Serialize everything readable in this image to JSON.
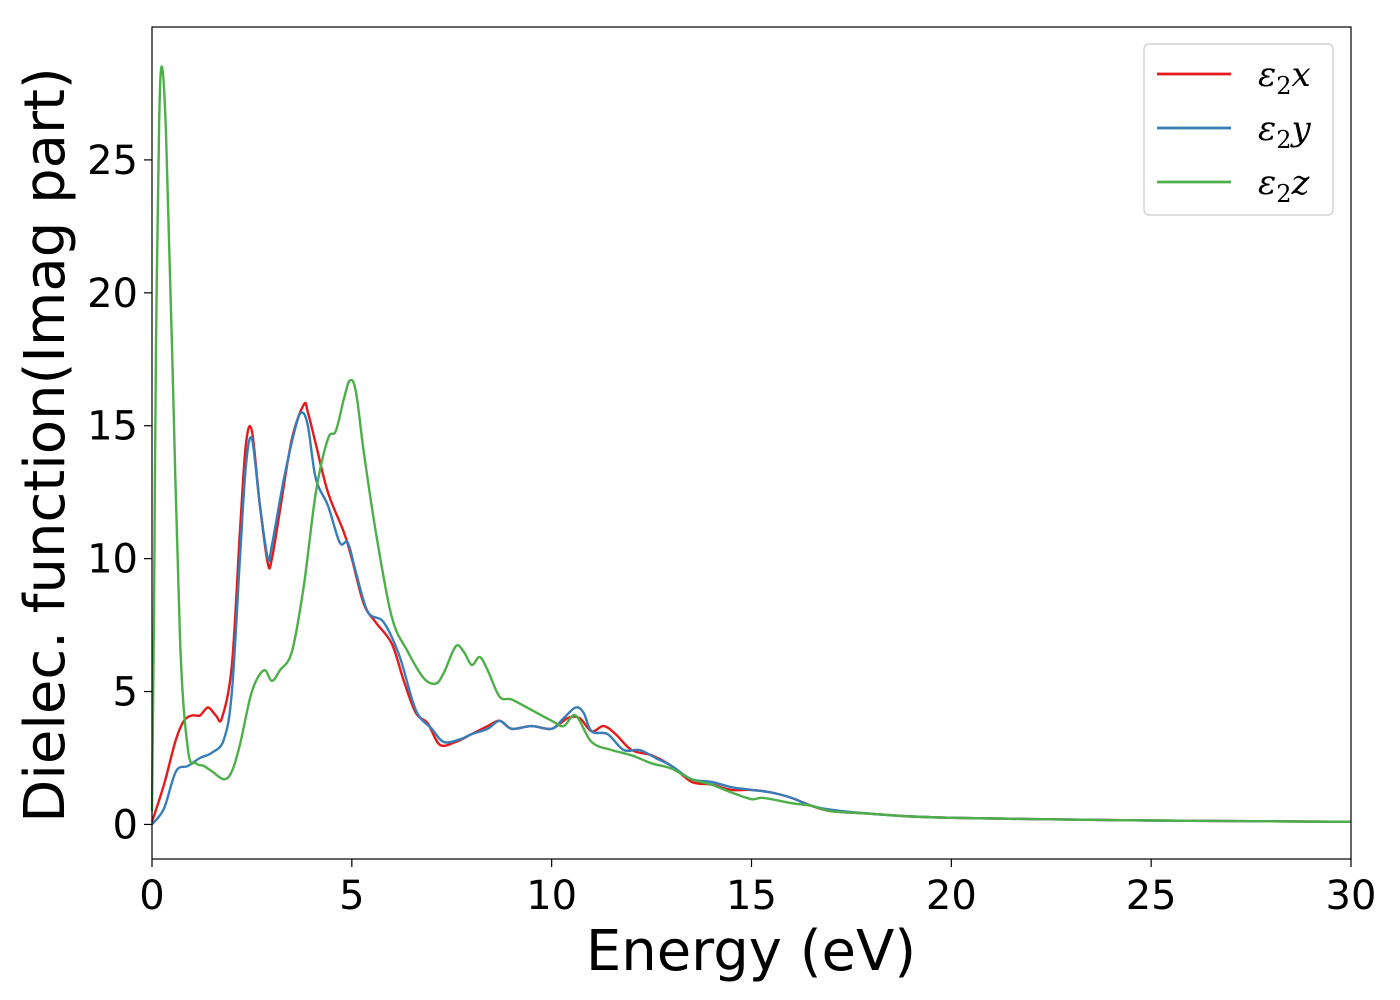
{
  "chart_data": {
    "type": "line",
    "xlabel": "Energy (eV)",
    "ylabel": "Dielec. function(Imag part)",
    "xlim": [
      0,
      30
    ],
    "ylim": [
      -1.3,
      30
    ],
    "xticks": [
      0,
      5,
      10,
      15,
      20,
      25,
      30
    ],
    "yticks": [
      0,
      5,
      10,
      15,
      20,
      25
    ],
    "grid": false,
    "legend_position": "top-right",
    "series": [
      {
        "name": "ε₂x",
        "legend": {
          "base": "ε",
          "sub": "2",
          "suffix": "x"
        },
        "color": "#e41a1c",
        "x": [
          0,
          0.3,
          0.6,
          0.8,
          1.0,
          1.2,
          1.4,
          1.6,
          1.75,
          2.0,
          2.2,
          2.35,
          2.5,
          2.7,
          2.9,
          3.0,
          3.2,
          3.5,
          3.8,
          3.9,
          4.1,
          4.4,
          4.8,
          5.0,
          5.3,
          5.6,
          6.0,
          6.3,
          6.6,
          6.9,
          7.2,
          7.6,
          8.0,
          8.4,
          8.7,
          9.0,
          9.5,
          10.0,
          10.4,
          10.7,
          11.0,
          11.3,
          11.6,
          12.0,
          12.5,
          13.0,
          13.5,
          14.0,
          14.5,
          15.0,
          15.5,
          16.0,
          16.5,
          17.0,
          18.0,
          19.0,
          20.0,
          22.0,
          25.0,
          28.0,
          30.0
        ],
        "y": [
          0.1,
          1.5,
          3.2,
          3.9,
          4.1,
          4.1,
          4.4,
          4.1,
          4.0,
          6.0,
          11.0,
          14.3,
          14.8,
          12.0,
          9.8,
          10.0,
          11.8,
          14.5,
          15.8,
          15.5,
          14.3,
          12.5,
          11.0,
          10.0,
          8.3,
          7.6,
          6.8,
          5.4,
          4.2,
          3.8,
          3.0,
          3.1,
          3.4,
          3.7,
          3.9,
          3.6,
          3.7,
          3.6,
          4.0,
          4.0,
          3.5,
          3.7,
          3.4,
          2.8,
          2.6,
          2.2,
          1.6,
          1.5,
          1.3,
          1.3,
          1.2,
          1.0,
          0.7,
          0.5,
          0.4,
          0.3,
          0.25,
          0.2,
          0.15,
          0.12,
          0.1
        ]
      },
      {
        "name": "ε₂y",
        "legend": {
          "base": "ε",
          "sub": "2",
          "suffix": "y"
        },
        "color": "#377eb8",
        "x": [
          0,
          0.3,
          0.6,
          0.9,
          1.2,
          1.5,
          1.8,
          2.0,
          2.2,
          2.35,
          2.5,
          2.7,
          2.9,
          3.0,
          3.3,
          3.6,
          3.75,
          3.9,
          4.1,
          4.4,
          4.7,
          4.9,
          5.1,
          5.4,
          5.8,
          6.2,
          6.6,
          7.0,
          7.3,
          7.7,
          8.0,
          8.4,
          8.7,
          9.0,
          9.5,
          10.0,
          10.3,
          10.6,
          10.8,
          11.0,
          11.4,
          11.8,
          12.2,
          12.6,
          13.0,
          13.5,
          14.0,
          14.5,
          15.0,
          15.5,
          16.0,
          16.5,
          17.0,
          18.0,
          19.0,
          20.0,
          22.0,
          25.0,
          28.0,
          30.0
        ],
        "y": [
          0.0,
          0.6,
          2.0,
          2.2,
          2.5,
          2.7,
          3.2,
          5.0,
          10.0,
          13.5,
          14.5,
          12.0,
          10.0,
          10.5,
          13.0,
          15.0,
          15.5,
          15.0,
          13.0,
          12.0,
          10.6,
          10.6,
          9.5,
          8.0,
          7.6,
          6.3,
          4.3,
          3.6,
          3.1,
          3.2,
          3.4,
          3.6,
          3.9,
          3.6,
          3.7,
          3.6,
          4.0,
          4.4,
          4.2,
          3.5,
          3.4,
          2.8,
          2.8,
          2.5,
          2.2,
          1.7,
          1.6,
          1.4,
          1.3,
          1.2,
          1.0,
          0.7,
          0.55,
          0.4,
          0.3,
          0.25,
          0.2,
          0.15,
          0.12,
          0.1
        ]
      },
      {
        "name": "ε₂z",
        "legend": {
          "base": "ε",
          "sub": "2",
          "suffix": "z"
        },
        "color": "#4daf4a",
        "x": [
          0,
          0.05,
          0.1,
          0.18,
          0.25,
          0.35,
          0.5,
          0.7,
          0.9,
          1.1,
          1.3,
          1.5,
          1.8,
          2.0,
          2.2,
          2.5,
          2.8,
          3.0,
          3.2,
          3.5,
          3.8,
          4.1,
          4.4,
          4.6,
          4.8,
          4.95,
          5.1,
          5.3,
          5.6,
          6.0,
          6.4,
          6.8,
          7.1,
          7.3,
          7.6,
          7.8,
          8.0,
          8.2,
          8.4,
          8.7,
          9.0,
          9.5,
          10.0,
          10.3,
          10.6,
          11.0,
          11.5,
          12.0,
          12.5,
          13.0,
          13.5,
          14.0,
          14.5,
          15.0,
          15.3,
          16.0,
          16.5,
          17.0,
          18.0,
          19.0,
          20.0,
          22.0,
          25.0,
          28.0,
          30.0
        ],
        "y": [
          0.5,
          8.0,
          18.0,
          26.5,
          28.5,
          26.0,
          18.0,
          7.0,
          2.8,
          2.3,
          2.2,
          2.0,
          1.7,
          2.0,
          3.0,
          5.0,
          5.8,
          5.4,
          5.8,
          6.5,
          9.0,
          12.5,
          14.5,
          14.8,
          16.0,
          16.7,
          16.3,
          14.0,
          11.0,
          7.8,
          6.5,
          5.5,
          5.3,
          5.7,
          6.7,
          6.5,
          6.0,
          6.3,
          5.8,
          4.8,
          4.7,
          4.3,
          3.9,
          3.7,
          4.1,
          3.1,
          2.8,
          2.6,
          2.3,
          2.1,
          1.7,
          1.5,
          1.2,
          0.95,
          1.0,
          0.8,
          0.7,
          0.5,
          0.4,
          0.3,
          0.25,
          0.2,
          0.15,
          0.12,
          0.1
        ]
      }
    ]
  }
}
